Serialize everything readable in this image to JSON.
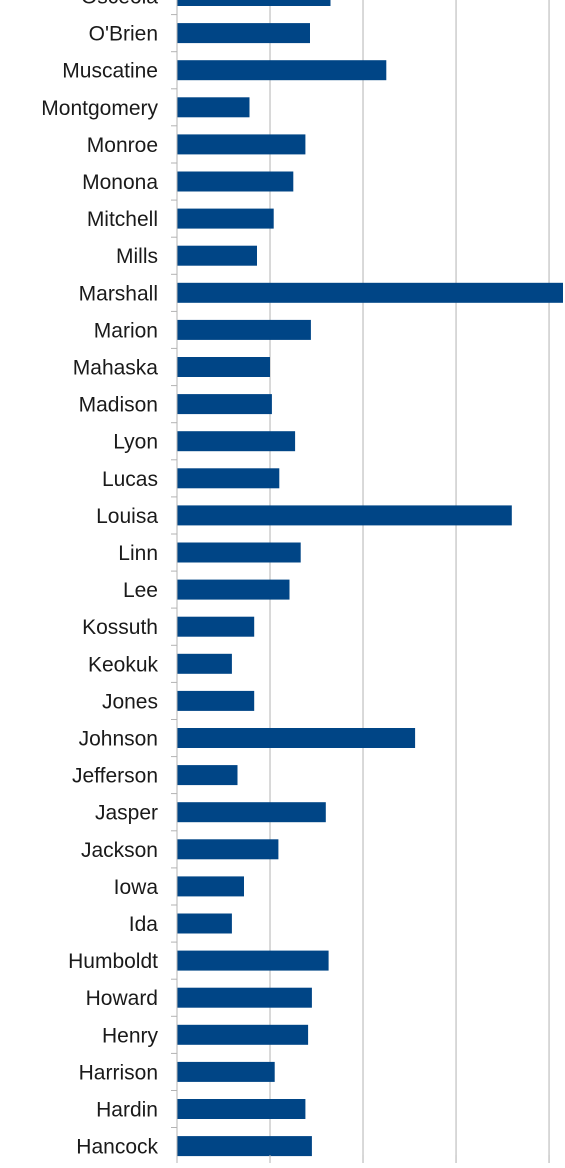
{
  "chart_data": {
    "type": "bar",
    "orientation": "horizontal",
    "categories": [
      "Osceola",
      "O'Brien",
      "Muscatine",
      "Montgomery",
      "Monroe",
      "Monona",
      "Mitchell",
      "Mills",
      "Marshall",
      "Marion",
      "Mahaska",
      "Madison",
      "Lyon",
      "Lucas",
      "Louisa",
      "Linn",
      "Lee",
      "Kossuth",
      "Keokuk",
      "Jones",
      "Johnson",
      "Jefferson",
      "Jasper",
      "Jackson",
      "Iowa",
      "Ida",
      "Humboldt",
      "Howard",
      "Henry",
      "Harrison",
      "Hardin",
      "Hancock"
    ],
    "values": [
      1.65,
      1.43,
      2.25,
      0.78,
      1.38,
      1.25,
      1.04,
      0.86,
      4.15,
      1.44,
      1.0,
      1.02,
      1.27,
      1.1,
      3.6,
      1.33,
      1.21,
      0.83,
      0.59,
      0.83,
      2.56,
      0.65,
      1.6,
      1.09,
      0.72,
      0.59,
      1.63,
      1.45,
      1.41,
      1.05,
      1.38,
      1.45
    ],
    "xlim": [
      0,
      4.15
    ],
    "gridlines_at": [
      1,
      2,
      3,
      4
    ],
    "grid": true,
    "title": "",
    "xlabel": "",
    "ylabel": "",
    "colors": {
      "bar": "#004586",
      "grid": "#b3b3b3",
      "axis": "#b3b3b3",
      "text": "#1a1a1a"
    }
  }
}
